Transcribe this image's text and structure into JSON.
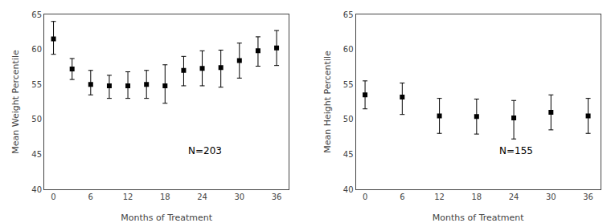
{
  "chart_data": [
    {
      "type": "scatter",
      "x": [
        0,
        3,
        6,
        9,
        12,
        15,
        18,
        21,
        24,
        27,
        30,
        33,
        36
      ],
      "values": [
        61.5,
        57.2,
        55.0,
        54.8,
        54.8,
        55.0,
        54.8,
        57.0,
        57.3,
        57.4,
        58.4,
        59.8,
        60.2
      ],
      "error_low": [
        2.2,
        1.5,
        1.5,
        1.8,
        1.8,
        2.0,
        2.5,
        2.2,
        2.5,
        2.8,
        2.5,
        2.2,
        2.5
      ],
      "error_high": [
        2.5,
        1.5,
        2.0,
        1.5,
        2.0,
        2.0,
        3.0,
        2.0,
        2.5,
        2.5,
        2.5,
        2.0,
        2.5
      ],
      "xlabel": "Months of Treatment",
      "ylabel": "Mean Weight Percentile",
      "xlim": [
        -1.5,
        38
      ],
      "xticks": [
        0,
        6,
        12,
        18,
        24,
        30,
        36
      ],
      "ylim": [
        40,
        65
      ],
      "yticks": [
        40,
        45,
        50,
        55,
        60,
        65
      ],
      "annotation": "N=203",
      "color": "#000000",
      "marker": "square",
      "grid": false
    },
    {
      "type": "scatter",
      "x": [
        0,
        6,
        12,
        18,
        24,
        30,
        36
      ],
      "values": [
        53.5,
        53.2,
        50.5,
        50.4,
        50.2,
        51.0,
        50.5
      ],
      "error_low": [
        2.0,
        2.5,
        2.5,
        2.5,
        3.0,
        2.5,
        2.5
      ],
      "error_high": [
        2.0,
        2.0,
        2.5,
        2.5,
        2.5,
        2.5,
        2.5
      ],
      "xlabel": "Months of Treatment",
      "ylabel": "Mean Height Percentile",
      "xlim": [
        -1.5,
        38
      ],
      "xticks": [
        0,
        6,
        12,
        18,
        24,
        30,
        36
      ],
      "ylim": [
        40,
        65
      ],
      "yticks": [
        40,
        45,
        50,
        55,
        60,
        65
      ],
      "annotation": "N=155",
      "color": "#000000",
      "marker": "square",
      "grid": false
    }
  ]
}
